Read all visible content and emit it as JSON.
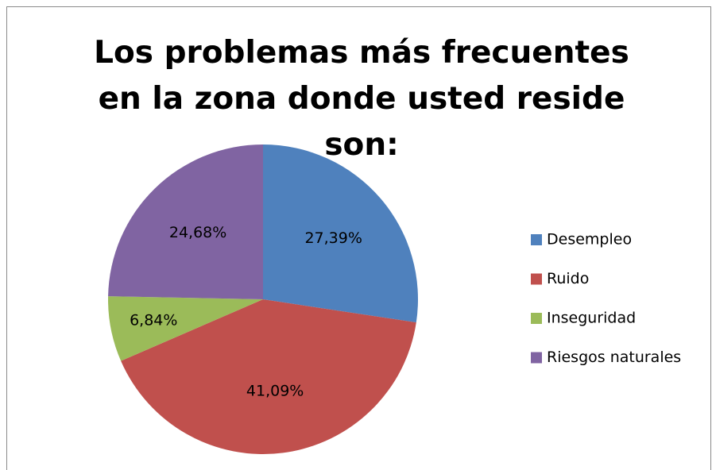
{
  "chart_data": {
    "type": "pie",
    "title": "Los problemas más frecuentes en la zona donde usted reside son:",
    "categories": [
      "Desempleo",
      "Ruido",
      "Inseguridad",
      "Riesgos naturales"
    ],
    "values": [
      27.39,
      41.09,
      6.84,
      24.68
    ],
    "value_labels": [
      "27,39%",
      "41,09%",
      "6,84%",
      "24,68%"
    ],
    "colors": [
      "#4f81bd",
      "#c0504d",
      "#9bbb59",
      "#8064a2"
    ],
    "legend": "right"
  }
}
